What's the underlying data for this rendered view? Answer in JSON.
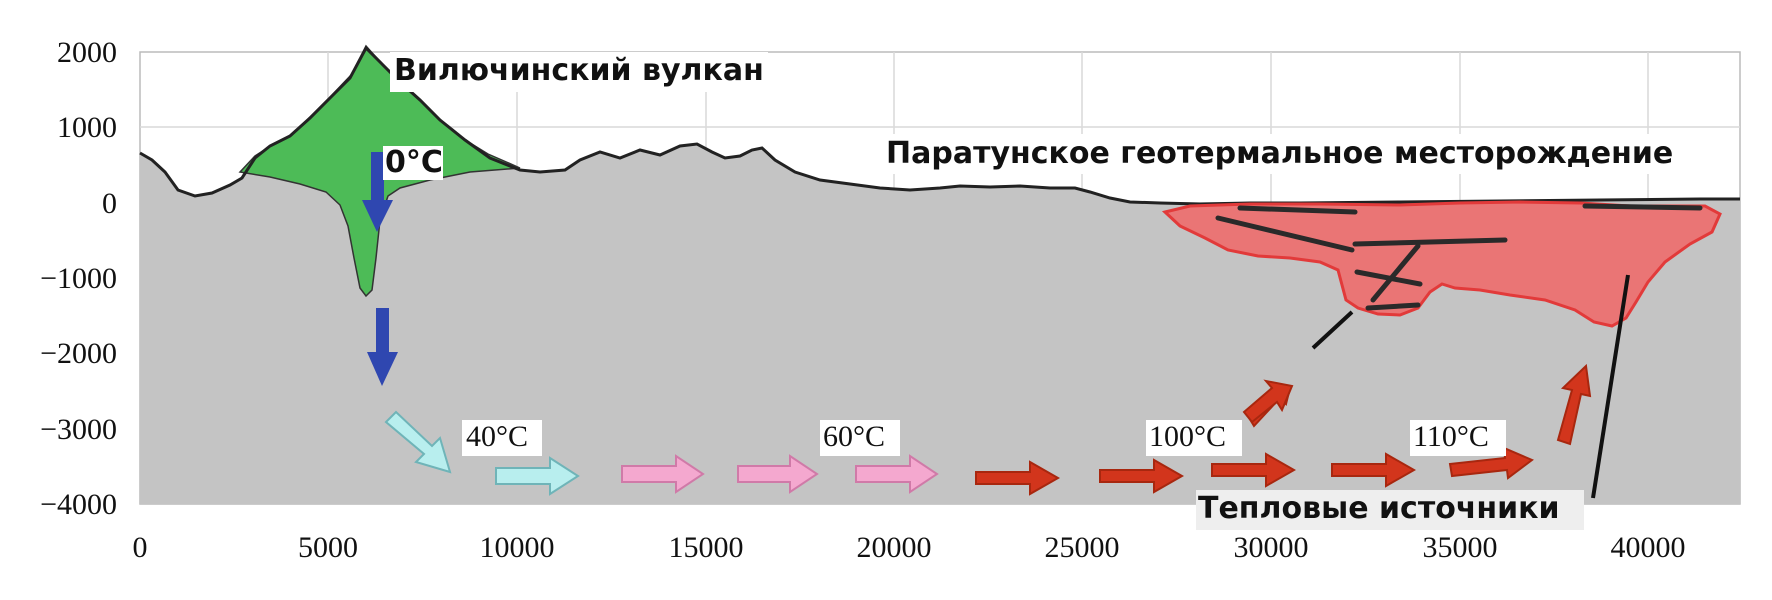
{
  "figure": {
    "x_ticks": [
      "0",
      "5000",
      "10000",
      "15000",
      "20000",
      "25000",
      "30000",
      "35000",
      "40000"
    ],
    "y_ticks": [
      "2000",
      "1000",
      "0",
      "−1000",
      "−2000",
      "−3000",
      "−4000"
    ],
    "x_range": [
      0,
      42500
    ],
    "y_range": [
      -4000,
      2000
    ],
    "grid": true,
    "labels": {
      "volcano": "Вилючинский вулкан",
      "field": "Паратунское геотермальное месторождение",
      "sources": "Тепловые источники",
      "temp_0": "0°C",
      "temp_40": "40°C",
      "temp_60": "60°C",
      "temp_100": "100°C",
      "temp_110": "110°C"
    },
    "colors": {
      "ground": "#c4c4c4",
      "volcano": "#4dbb57",
      "reservoir": "#ef6a6a",
      "arrow_blue": "#2f47b0",
      "arrow_cyan": "#b8eeee",
      "arrow_pink": "#f4a8cf",
      "arrow_red": "#d2351c",
      "grid": "#d9d9d9"
    }
  }
}
